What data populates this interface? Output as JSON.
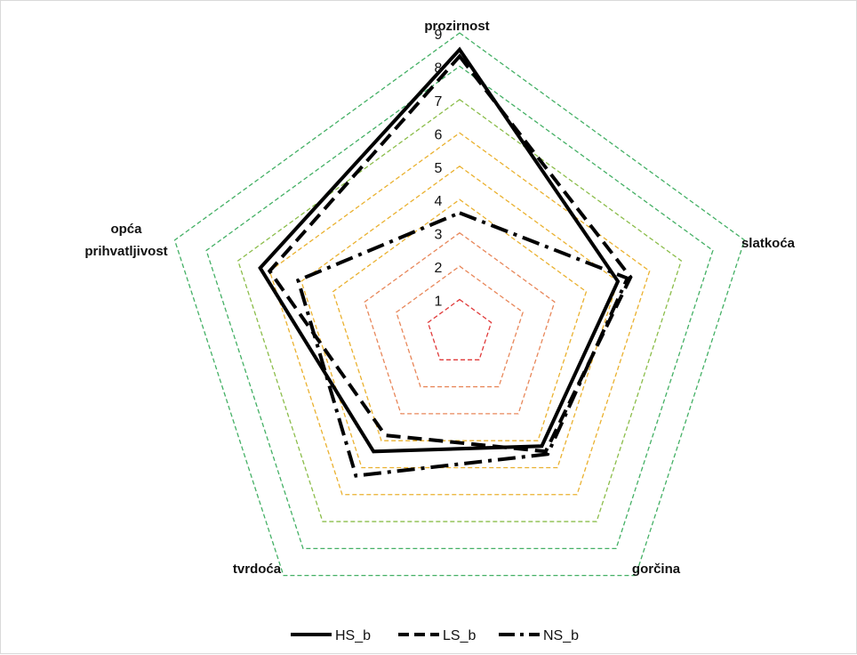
{
  "chart_data": {
    "type": "radar",
    "axes": [
      "prozirnost",
      "slatkoća",
      "gorčina",
      "tvrdoća",
      "opća prihvatljivost"
    ],
    "axis_label_lines": [
      [
        "prozirnost"
      ],
      [
        "slatkoća"
      ],
      [
        "gorčina"
      ],
      [
        "tvrdoća"
      ],
      [
        "opća",
        "prihvatljivost"
      ]
    ],
    "ticks": [
      "1",
      "2",
      "3",
      "4",
      "5",
      "6",
      "7",
      "8",
      "9"
    ],
    "range": [
      0,
      9
    ],
    "grid_colors": [
      "#e03a3a",
      "#e8875a",
      "#e8875a",
      "#eab12f",
      "#eab12f",
      "#eab12f",
      "#8bbd4a",
      "#44b065",
      "#44b065"
    ],
    "series": [
      {
        "name": "HS_b",
        "values": [
          8.5,
          5.0,
          4.2,
          4.4,
          6.3
        ],
        "style": "solid"
      },
      {
        "name": "LS_b",
        "values": [
          8.3,
          5.4,
          4.4,
          3.8,
          6.0
        ],
        "style": "dashed"
      },
      {
        "name": "NS_b",
        "values": [
          3.6,
          5.3,
          4.5,
          5.3,
          5.1
        ],
        "style": "dashdot"
      }
    ],
    "legend_position": "bottom"
  }
}
